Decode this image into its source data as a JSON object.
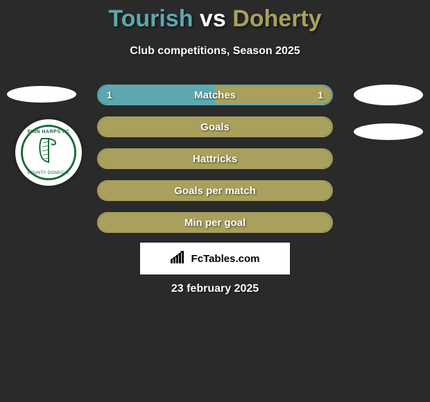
{
  "title": {
    "player1": "Tourish",
    "vs": "vs",
    "player2": "Doherty",
    "player1_color": "#5ca8b0",
    "player2_color": "#a8a05c"
  },
  "subtitle": "Club competitions, Season 2025",
  "badge": {
    "top_text": "FINN HARPS FC",
    "bottom_text": "COUNTY DONEGAL"
  },
  "colors": {
    "background": "#2a2a2a",
    "p1_fill": "#5ca8b0",
    "p2_fill": "#a8a05c",
    "text": "#ffffff"
  },
  "stats": [
    {
      "label": "Matches",
      "left_val": "1",
      "right_val": "1",
      "left_pct": 50,
      "right_pct": 50,
      "show_vals": true,
      "border_color": "#5ca8b0",
      "left_color": "#5ca8b0",
      "right_color": "#a8a05c"
    },
    {
      "label": "Goals",
      "left_val": "",
      "right_val": "",
      "left_pct": 0,
      "right_pct": 100,
      "show_vals": false,
      "border_color": "#a8a05c",
      "left_color": "#5ca8b0",
      "right_color": "#a8a05c"
    },
    {
      "label": "Hattricks",
      "left_val": "",
      "right_val": "",
      "left_pct": 0,
      "right_pct": 100,
      "show_vals": false,
      "border_color": "#a8a05c",
      "left_color": "#5ca8b0",
      "right_color": "#a8a05c"
    },
    {
      "label": "Goals per match",
      "left_val": "",
      "right_val": "",
      "left_pct": 0,
      "right_pct": 100,
      "show_vals": false,
      "border_color": "#a8a05c",
      "left_color": "#5ca8b0",
      "right_color": "#a8a05c"
    },
    {
      "label": "Min per goal",
      "left_val": "",
      "right_val": "",
      "left_pct": 0,
      "right_pct": 100,
      "show_vals": false,
      "border_color": "#a8a05c",
      "left_color": "#5ca8b0",
      "right_color": "#a8a05c"
    }
  ],
  "footer": {
    "brand": "FcTables.com"
  },
  "date": "23 february 2025"
}
